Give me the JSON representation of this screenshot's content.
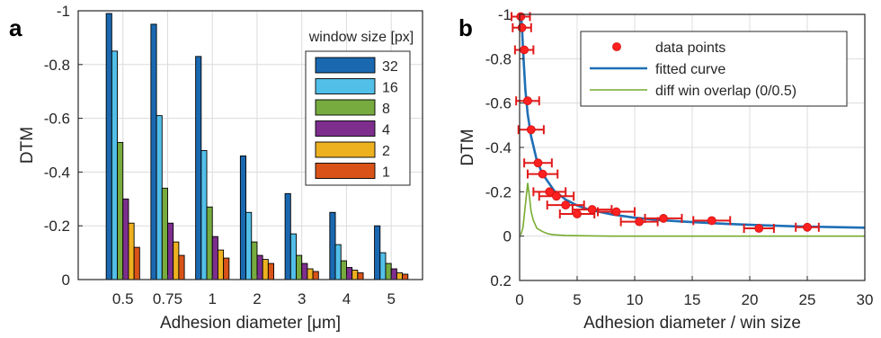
{
  "panel_a_letter": "a",
  "panel_b_letter": "b",
  "chart_data": [
    {
      "type": "bar",
      "xlabel": "Adhesion diameter [μm]",
      "ylabel": "DTM",
      "categories": [
        "0.5",
        "0.75",
        "1",
        "2",
        "3",
        "4",
        "5"
      ],
      "ylim": [
        0,
        -1
      ],
      "y_ticks": [
        "0",
        "-0.2",
        "-0.4",
        "-0.6",
        "-0.8",
        "-1"
      ],
      "y_tick_values": [
        0,
        -0.2,
        -0.4,
        -0.6,
        -0.8,
        -1
      ],
      "grid": true,
      "legend_title": "window size [px]",
      "legend_position": "top-right",
      "series": [
        {
          "name": "32",
          "color": "#1a68b0",
          "values": [
            -0.99,
            -0.95,
            -0.83,
            -0.46,
            -0.32,
            -0.25,
            -0.2
          ]
        },
        {
          "name": "16",
          "color": "#52bfe9",
          "values": [
            -0.85,
            -0.61,
            -0.48,
            -0.25,
            -0.17,
            -0.13,
            -0.1
          ]
        },
        {
          "name": "8",
          "color": "#77ab3f",
          "values": [
            -0.51,
            -0.34,
            -0.27,
            -0.14,
            -0.09,
            -0.07,
            -0.06
          ]
        },
        {
          "name": "4",
          "color": "#7e2f8e",
          "values": [
            -0.3,
            -0.21,
            -0.16,
            -0.09,
            -0.06,
            -0.045,
            -0.04
          ]
        },
        {
          "name": "2",
          "color": "#edb120",
          "values": [
            -0.21,
            -0.14,
            -0.11,
            -0.075,
            -0.04,
            -0.035,
            -0.025
          ]
        },
        {
          "name": "1",
          "color": "#d95319",
          "values": [
            -0.12,
            -0.09,
            -0.08,
            -0.06,
            -0.03,
            -0.025,
            -0.02
          ]
        }
      ]
    },
    {
      "type": "scatter",
      "xlabel": "Adhesion diameter / win size",
      "ylabel": "DTM",
      "xlim": [
        0,
        30
      ],
      "ylim": [
        0.2,
        -1
      ],
      "x_ticks": [
        "0",
        "5",
        "10",
        "15",
        "20",
        "25",
        "30"
      ],
      "x_tick_values": [
        0,
        5,
        10,
        15,
        20,
        25,
        30
      ],
      "y_ticks": [
        "0.2",
        "0",
        "-0.2",
        "-0.4",
        "-0.6",
        "-0.8",
        "-1"
      ],
      "y_tick_values": [
        0.2,
        0,
        -0.2,
        -0.4,
        -0.6,
        -0.8,
        -1
      ],
      "grid": true,
      "legend_position": "top-right",
      "series": [
        {
          "name": "data points",
          "color": "#ff2020",
          "error_color": "#e11a1a",
          "x": [
            0.1,
            0.2,
            0.4,
            0.7,
            1.0,
            1.6,
            2.0,
            2.6,
            3.2,
            4.0,
            5.0,
            6.3,
            8.4,
            10.4,
            12.5,
            16.7,
            20.8,
            25.0
          ],
          "y": [
            -0.99,
            -0.94,
            -0.84,
            -0.61,
            -0.48,
            -0.33,
            -0.28,
            -0.2,
            -0.18,
            -0.14,
            -0.1,
            -0.12,
            -0.11,
            -0.065,
            -0.08,
            -0.07,
            -0.035,
            -0.04
          ],
          "err": [
            0.8,
            0.8,
            0.8,
            1.0,
            1.1,
            1.2,
            1.3,
            1.4,
            1.5,
            1.6,
            1.5,
            1.7,
            1.6,
            1.6,
            1.6,
            1.6,
            1.3,
            1.0
          ]
        },
        {
          "name": "fitted curve",
          "color": "#1f6fb5",
          "x": [
            0.1,
            0.2,
            0.3,
            0.5,
            0.7,
            1.0,
            1.5,
            2.0,
            3.0,
            4.0,
            5.0,
            6.0,
            8.0,
            10.0,
            12.0,
            15.0,
            18.0,
            21.0,
            24.0,
            27.0,
            30.0
          ],
          "y": [
            -1.0,
            -0.95,
            -0.84,
            -0.66,
            -0.55,
            -0.45,
            -0.34,
            -0.28,
            -0.205,
            -0.165,
            -0.138,
            -0.12,
            -0.098,
            -0.083,
            -0.073,
            -0.063,
            -0.055,
            -0.049,
            -0.044,
            -0.041,
            -0.038
          ]
        },
        {
          "name": "diff win overlap (0/0.5)",
          "color": "#77ac30",
          "x": [
            0.1,
            0.3,
            0.5,
            0.7,
            0.85,
            1.0,
            1.2,
            1.5,
            2.0,
            2.5,
            3.0,
            4.0,
            5.0,
            8.0,
            12.0,
            20.0,
            30.0
          ],
          "y": [
            -0.005,
            -0.04,
            -0.14,
            -0.24,
            -0.18,
            -0.11,
            -0.07,
            -0.035,
            -0.02,
            -0.01,
            -0.006,
            -0.003,
            -0.002,
            0.0,
            0.0,
            0.0,
            0.0
          ]
        }
      ]
    }
  ]
}
